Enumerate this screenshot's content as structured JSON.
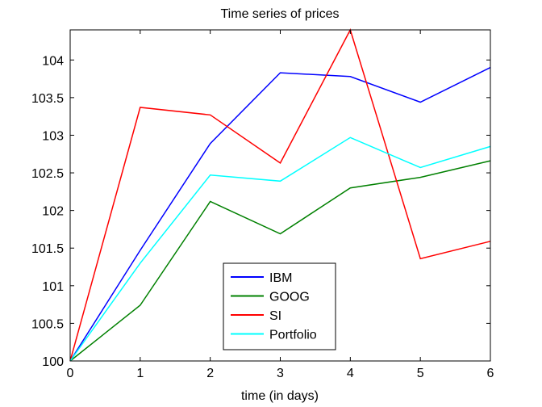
{
  "chart_data": {
    "type": "line",
    "title": "Time series of prices",
    "xlabel": "time (in days)",
    "ylabel": "",
    "xlim": [
      0,
      6
    ],
    "ylim": [
      100,
      104.4
    ],
    "x": [
      0,
      1,
      2,
      3,
      4,
      5,
      6
    ],
    "xticks": [
      "0",
      "1",
      "2",
      "3",
      "4",
      "5",
      "6"
    ],
    "yticks": [
      "100",
      "100.5",
      "101",
      "101.5",
      "102",
      "102.5",
      "103",
      "103.5",
      "104"
    ],
    "yticks_values": [
      100,
      100.5,
      101,
      101.5,
      102,
      102.5,
      103,
      103.5,
      104
    ],
    "grid": false,
    "legend_position": "bottom-center",
    "series": [
      {
        "name": "IBM",
        "color": "#0000ff",
        "values": [
          100,
          101.47,
          102.89,
          103.83,
          103.78,
          103.44,
          103.9
        ]
      },
      {
        "name": "GOOG",
        "color": "#008000",
        "values": [
          100,
          100.74,
          102.12,
          101.69,
          102.3,
          102.44,
          102.66
        ]
      },
      {
        "name": "SI",
        "color": "#ff0000",
        "values": [
          100,
          103.37,
          103.27,
          102.63,
          104.4,
          101.36,
          101.59
        ]
      },
      {
        "name": "Portfolio",
        "color": "#00ffff",
        "values": [
          100,
          101.3,
          102.47,
          102.39,
          102.97,
          102.57,
          102.85
        ]
      }
    ]
  }
}
